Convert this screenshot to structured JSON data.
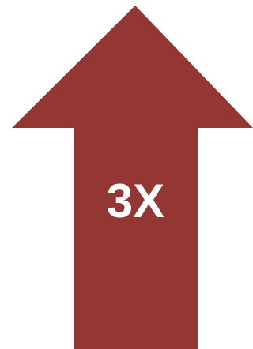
{
  "graphic": {
    "shape": "up-arrow-icon",
    "fill_color": "#943634",
    "background_color": "#ffffff",
    "label": "3X",
    "label_color": "#ffffff"
  }
}
